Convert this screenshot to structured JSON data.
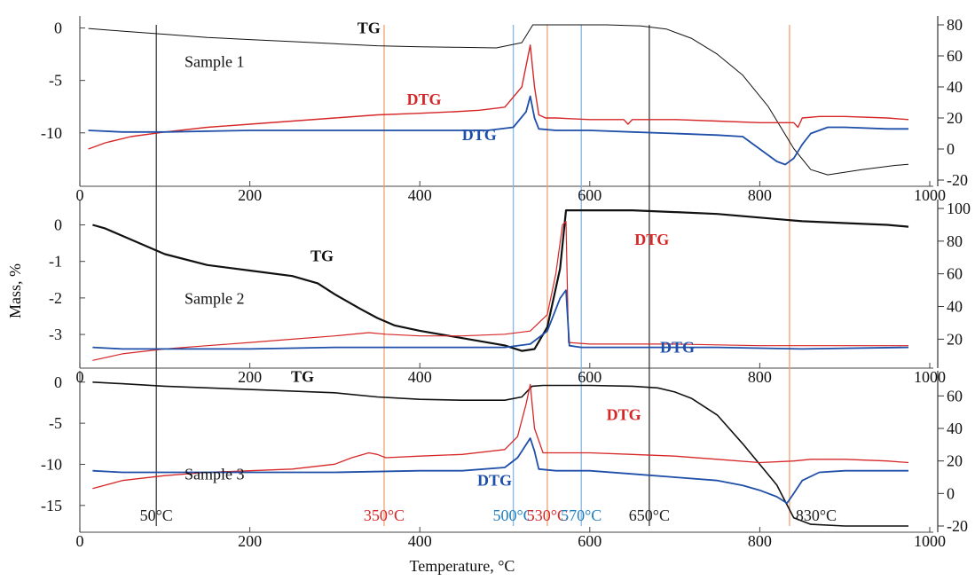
{
  "chart_data": {
    "type": "line",
    "xlabel": "Temperature, °C",
    "ylabel": "Mass, %",
    "xlim": [
      0,
      1000
    ],
    "x_ticks": [
      "0",
      "200",
      "400",
      "600",
      "800",
      "1000"
    ],
    "colors": {
      "TG": "#111111",
      "DTG_red": "#d62728",
      "DTG_blue": "#1f4fa8",
      "marker_orange": "#f0a070",
      "marker_blue": "#7fb3e0",
      "marker_black": "#333333"
    },
    "panels": [
      {
        "name": "Sample 1",
        "label": "Sample 1",
        "left_ylim": [
          -14.5,
          0.3
        ],
        "left_ticks": [
          "0",
          "-5",
          "-10"
        ],
        "left_tick_values": [
          0,
          -5,
          -10
        ],
        "right_ylim": [
          -20,
          80
        ],
        "right_ticks": [
          "80",
          "60",
          "40",
          "20",
          "0",
          "-20"
        ],
        "right_tick_values": [
          80,
          60,
          40,
          20,
          0,
          -20
        ],
        "annotations": [
          {
            "text": "TG",
            "color": "TG",
            "x": 340,
            "y_left": -0.5
          },
          {
            "text": "DTG",
            "color": "DTG_red",
            "x": 405,
            "y_left": -7.3
          },
          {
            "text": "DTG",
            "color": "DTG_blue",
            "x": 470,
            "y_left": -10.7
          }
        ],
        "series": [
          {
            "name": "TG",
            "axis": "left",
            "color": "TG",
            "width": 1,
            "x": [
              10,
              50,
              100,
              150,
              200,
              250,
              300,
              350,
              400,
              450,
              490,
              520,
              533,
              545,
              580,
              620,
              660,
              690,
              720,
              750,
              780,
              810,
              840,
              860,
              880,
              920,
              960,
              975
            ],
            "y": [
              -0.05,
              -0.3,
              -0.6,
              -0.9,
              -1.1,
              -1.3,
              -1.5,
              -1.7,
              -1.8,
              -1.85,
              -1.9,
              -1.4,
              0.3,
              0.3,
              0.3,
              0.3,
              0.2,
              -0.1,
              -1.0,
              -2.5,
              -4.5,
              -7.5,
              -11.5,
              -13.5,
              -14.0,
              -13.5,
              -13.1,
              -13.0
            ]
          },
          {
            "name": "DTG",
            "axis": "right",
            "color": "DTG_red",
            "width": 1.4,
            "x": [
              10,
              30,
              60,
              100,
              150,
              200,
              250,
              300,
              350,
              400,
              440,
              470,
              500,
              520,
              530,
              535,
              540,
              548,
              560,
              600,
              640,
              645,
              650,
              700,
              750,
              800,
              840,
              845,
              850,
              870,
              900,
              950,
              975
            ],
            "y": [
              0,
              4,
              8,
              11,
              14,
              16,
              18,
              20,
              22,
              23,
              24,
              25,
              27,
              40,
              67,
              40,
              22,
              20,
              20,
              19,
              19,
              16,
              19,
              19,
              18,
              17,
              17,
              14,
              20,
              21,
              21,
              20,
              19
            ]
          },
          {
            "name": "DTG",
            "axis": "right",
            "color": "DTG_blue",
            "width": 1.8,
            "x": [
              10,
              50,
              100,
              200,
              300,
              400,
              450,
              480,
              510,
              525,
              530,
              535,
              540,
              560,
              600,
              650,
              700,
              750,
              780,
              800,
              820,
              830,
              840,
              850,
              860,
              880,
              900,
              950,
              975
            ],
            "y": [
              12,
              11,
              11,
              12,
              12,
              12,
              12,
              12,
              14,
              24,
              34,
              20,
              13,
              12,
              12,
              11,
              10,
              9,
              8,
              0,
              -8,
              -10,
              -6,
              3,
              10,
              14,
              14,
              13,
              13
            ]
          }
        ]
      },
      {
        "name": "Sample 2",
        "label": "Sample 2",
        "left_ylim": [
          -3.8,
          0.45
        ],
        "left_ticks": [
          "0",
          "-1",
          "-2",
          "-3"
        ],
        "left_tick_values": [
          0,
          -1,
          -2,
          -3
        ],
        "right_ylim": [
          5,
          100
        ],
        "right_ticks": [
          "100",
          "80",
          "60",
          "40",
          "20"
        ],
        "right_tick_values": [
          100,
          80,
          60,
          40,
          20
        ],
        "annotations": [
          {
            "text": "TG",
            "color": "TG",
            "x": 285,
            "y_left": -1.0
          },
          {
            "text": "DTG",
            "color": "DTG_red",
            "x": 673,
            "y_left": -0.55
          },
          {
            "text": "DTG",
            "color": "DTG_blue",
            "x": 703,
            "y_left": -3.5
          }
        ],
        "series": [
          {
            "name": "TG",
            "axis": "left",
            "color": "TG",
            "width": 2.2,
            "x": [
              15,
              30,
              50,
              80,
              100,
              150,
              200,
              250,
              280,
              300,
              330,
              350,
              370,
              400,
              450,
              500,
              520,
              535,
              550,
              565,
              572,
              575,
              600,
              650,
              700,
              750,
              800,
              850,
              900,
              950,
              975
            ],
            "y": [
              0,
              -0.1,
              -0.3,
              -0.6,
              -0.8,
              -1.1,
              -1.25,
              -1.4,
              -1.6,
              -1.9,
              -2.3,
              -2.55,
              -2.75,
              -2.9,
              -3.1,
              -3.3,
              -3.45,
              -3.4,
              -2.8,
              -1.2,
              0.4,
              0.4,
              0.4,
              0.4,
              0.35,
              0.3,
              0.2,
              0.1,
              0.05,
              0.0,
              -0.05
            ]
          },
          {
            "name": "DTG",
            "axis": "right",
            "color": "DTG_red",
            "width": 1.2,
            "x": [
              15,
              50,
              100,
              150,
              200,
              250,
              300,
              340,
              360,
              400,
              450,
              500,
              530,
              550,
              560,
              568,
              572,
              575,
              600,
              700,
              800,
              900,
              975
            ],
            "y": [
              7,
              11,
              14,
              16,
              18,
              20,
              22,
              24,
              23,
              22,
              22,
              23,
              25,
              35,
              60,
              90,
              92,
              18,
              17,
              17,
              16,
              16,
              16
            ]
          },
          {
            "name": "DTG",
            "axis": "right",
            "color": "DTG_blue",
            "width": 1.8,
            "x": [
              15,
              50,
              100,
              200,
              300,
              400,
              500,
              530,
              550,
              565,
              572,
              576,
              590,
              650,
              750,
              850,
              975
            ],
            "y": [
              15,
              14,
              14,
              14,
              15,
              15,
              15,
              17,
              25,
              45,
              50,
              16,
              15,
              15,
              15,
              14,
              15
            ]
          }
        ]
      },
      {
        "name": "Sample 3",
        "label": "Sample 3",
        "left_ylim": [
          -17.5,
          0.3
        ],
        "left_ticks": [
          "0",
          "-5",
          "-10",
          "-15"
        ],
        "left_tick_values": [
          0,
          -5,
          -10,
          -15
        ],
        "right_ylim": [
          -20,
          70
        ],
        "right_ticks": [
          "60",
          "40",
          "20",
          "0",
          "-20"
        ],
        "right_tick_values": [
          60,
          40,
          20,
          0,
          -20
        ],
        "annotations": [
          {
            "text": "TG",
            "color": "TG",
            "x": 262,
            "y_left": 0.05
          },
          {
            "text": "DTG",
            "color": "DTG_red",
            "x": 640,
            "y_left": -4.6
          },
          {
            "text": "DTG",
            "color": "DTG_blue",
            "x": 488,
            "y_left": -12.6
          }
        ],
        "series": [
          {
            "name": "TG",
            "axis": "left",
            "color": "TG",
            "width": 1.6,
            "x": [
              15,
              50,
              100,
              200,
              300,
              350,
              400,
              450,
              500,
              520,
              532,
              545,
              600,
              650,
              680,
              700,
              720,
              750,
              780,
              800,
              820,
              830,
              840,
              860,
              900,
              975
            ],
            "y": [
              0,
              -0.2,
              -0.5,
              -0.9,
              -1.3,
              -1.8,
              -2.1,
              -2.2,
              -2.2,
              -1.8,
              -0.5,
              -0.4,
              -0.4,
              -0.5,
              -0.7,
              -1.2,
              -2.0,
              -4.0,
              -7.5,
              -10.0,
              -12.5,
              -14.5,
              -16.5,
              -17.3,
              -17.5,
              -17.5
            ]
          },
          {
            "name": "DTG",
            "axis": "right",
            "color": "DTG_red",
            "width": 1.3,
            "x": [
              15,
              50,
              100,
              150,
              200,
              250,
              300,
              320,
              340,
              350,
              360,
              400,
              450,
              500,
              515,
              525,
              530,
              535,
              545,
              600,
              650,
              700,
              750,
              800,
              840,
              860,
              900,
              950,
              975
            ],
            "y": [
              3,
              8,
              11,
              13,
              14,
              15,
              18,
              22,
              25,
              24,
              22,
              23,
              24,
              27,
              35,
              55,
              67,
              40,
              25,
              25,
              24,
              23,
              21,
              19,
              20,
              21,
              21,
              20,
              19
            ]
          },
          {
            "name": "DTG",
            "axis": "right",
            "color": "DTG_blue",
            "width": 1.8,
            "x": [
              15,
              50,
              100,
              200,
              300,
              400,
              450,
              500,
              515,
              525,
              530,
              535,
              540,
              560,
              600,
              650,
              700,
              750,
              780,
              800,
              820,
              832,
              840,
              850,
              870,
              900,
              950,
              975
            ],
            "y": [
              14,
              13,
              13,
              13,
              13,
              14,
              14,
              16,
              22,
              30,
              34,
              26,
              15,
              14,
              14,
              12,
              10,
              8,
              5,
              2,
              -2,
              -6,
              0,
              8,
              13,
              14,
              14,
              14
            ]
          }
        ]
      }
    ],
    "temperature_markers": [
      {
        "x": 90,
        "label": "50°C",
        "color": "marker_black",
        "label_color": "#222222"
      },
      {
        "x": 358,
        "label": "350°C",
        "color": "marker_orange",
        "label_color": "#d62728"
      },
      {
        "x": 510,
        "label": "500°C",
        "color": "marker_blue",
        "label_color": "#1f7fc0"
      },
      {
        "x": 550,
        "label": "530°C",
        "color": "marker_orange",
        "label_color": "#d62728"
      },
      {
        "x": 590,
        "label": "570°C",
        "color": "marker_blue",
        "label_color": "#1f7fc0"
      },
      {
        "x": 670,
        "label": "650°C",
        "color": "marker_black",
        "label_color": "#222222"
      },
      {
        "x": 835,
        "label": "830°C",
        "color": "marker_orange",
        "label_color": "#222222"
      }
    ]
  }
}
